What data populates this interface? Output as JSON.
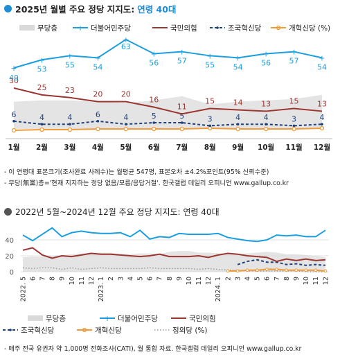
{
  "chart1": {
    "title_main": "2025년 월별 주요 정당 지지도:",
    "title_highlight": "연령 40대",
    "legend": [
      "무당층",
      "더불어민주당",
      "국민의힘",
      "조국혁신당",
      "개혁신당 (%)"
    ],
    "notes": [
      "- 이 연령대 표본크기(조사완료 사례수)는 월평균 547명, 표본오차 ±4.2%포인트(95% 신뢰수준)",
      "- 무당(無黨)층='현재 지지하는 정당 없음/모름/응답거절'. 한국갤럽 데일리 오피니언 www.gallup.co.kr"
    ]
  },
  "chart2": {
    "title": "2022년 5월~2024년 12월 주요 정당 지지도: 연령 40대",
    "legend": [
      "무당층",
      "더불어민주당",
      "국민의힘",
      "조국혁신당",
      "개혁신당",
      "정의당 (%)"
    ],
    "note": "- 매주 전국 유권자 약 1,000명 전화조사(CATI), 월 통합 자료. 한국갤럽 데일리 오피니언 www.gallup.co.kr"
  },
  "colors": {
    "accent": "#1f8dd6",
    "democratic": "#1a9ee0",
    "ppp": "#9b3530",
    "rebuilding": "#1f3f7a",
    "reform": "#f29a36",
    "justice": "#9a9a9a",
    "independent": "#d9d9d9"
  },
  "chart_data": [
    {
      "type": "line",
      "title": "2025년 월별 주요 정당 지지도: 연령 40대",
      "categories": [
        "1월",
        "2월",
        "3월",
        "4월",
        "5월",
        "6월",
        "7월",
        "8월",
        "9월",
        "10월",
        "11월",
        "12월"
      ],
      "series": [
        {
          "name": "무당층",
          "kind": "area",
          "values": [
            20,
            21,
            21,
            20,
            19,
            21,
            24,
            18,
            20,
            21,
            22,
            25
          ]
        },
        {
          "name": "더불어민주당",
          "values": [
            49,
            53,
            55,
            54,
            63,
            56,
            57,
            55,
            54,
            56,
            57,
            54
          ]
        },
        {
          "name": "국민의힘",
          "values": [
            30,
            25,
            23,
            20,
            20,
            16,
            11,
            15,
            14,
            13,
            15,
            13
          ]
        },
        {
          "name": "조국혁신당",
          "values": [
            6,
            4,
            4,
            6,
            4,
            5,
            5,
            3,
            4,
            4,
            3,
            4
          ]
        },
        {
          "name": "개혁신당",
          "values": [
            1,
            1.5,
            1.5,
            2,
            2,
            2,
            2,
            2.5,
            2,
            2,
            2,
            2.5
          ]
        }
      ]
    },
    {
      "type": "line",
      "title": "2022년 5월~2024년 12월 주요 정당 지지도: 연령 40대",
      "y_ticks": [
        0,
        20,
        40
      ],
      "x_tick_labels": [
        "2022. 5",
        "6",
        "7",
        "8",
        "9",
        "10",
        "11",
        "12",
        "2023. 1",
        "2",
        "3",
        "4",
        "5",
        "6",
        "7",
        "8",
        "9",
        "10",
        "11",
        "12",
        "2024. 1",
        "2",
        "3",
        "4",
        "5",
        "6",
        "7",
        "8",
        "9",
        "10",
        "11",
        "12"
      ],
      "series": [
        {
          "name": "무당층",
          "kind": "area",
          "values": [
            18,
            19,
            19,
            20,
            21,
            22,
            23,
            24,
            24,
            24,
            22,
            22,
            23,
            23,
            22,
            25,
            26,
            26,
            24,
            24,
            23,
            23,
            22,
            23,
            24,
            25,
            24,
            22,
            22,
            21,
            20,
            18
          ]
        },
        {
          "name": "더불어민주당",
          "values": [
            46,
            39,
            47,
            55,
            44,
            49,
            51,
            49,
            48,
            48,
            49,
            44,
            52,
            41,
            44,
            43,
            48,
            47,
            47,
            47,
            48,
            43,
            41,
            39,
            38,
            40,
            46,
            45,
            46,
            44,
            44,
            52
          ]
        },
        {
          "name": "국민의힘",
          "values": [
            27,
            30,
            21,
            17,
            20,
            19,
            21,
            23,
            22,
            22,
            21,
            20,
            19,
            20,
            22,
            19,
            19,
            19,
            20,
            18,
            21,
            23,
            22,
            20,
            19,
            18,
            13,
            16,
            14,
            16,
            14,
            15
          ]
        },
        {
          "name": "조국혁신당",
          "values": [
            null,
            null,
            null,
            null,
            null,
            null,
            null,
            null,
            null,
            null,
            null,
            null,
            null,
            null,
            null,
            null,
            null,
            null,
            null,
            null,
            null,
            null,
            9,
            13,
            15,
            12,
            12,
            9,
            10,
            8,
            9,
            8
          ]
        },
        {
          "name": "개혁신당",
          "values": [
            null,
            null,
            null,
            null,
            null,
            null,
            null,
            null,
            null,
            null,
            null,
            null,
            null,
            null,
            null,
            null,
            null,
            null,
            null,
            null,
            null,
            1,
            1,
            2,
            2,
            3,
            3,
            2,
            2,
            2,
            2,
            1
          ]
        },
        {
          "name": "정의당",
          "values": [
            5,
            4,
            5,
            5,
            3,
            5,
            3,
            4,
            5,
            4,
            4,
            4,
            4,
            5,
            4,
            4,
            4,
            4,
            3,
            4,
            3,
            2,
            2,
            1,
            1,
            1,
            1,
            1,
            1,
            0,
            0,
            0
          ]
        }
      ]
    }
  ]
}
